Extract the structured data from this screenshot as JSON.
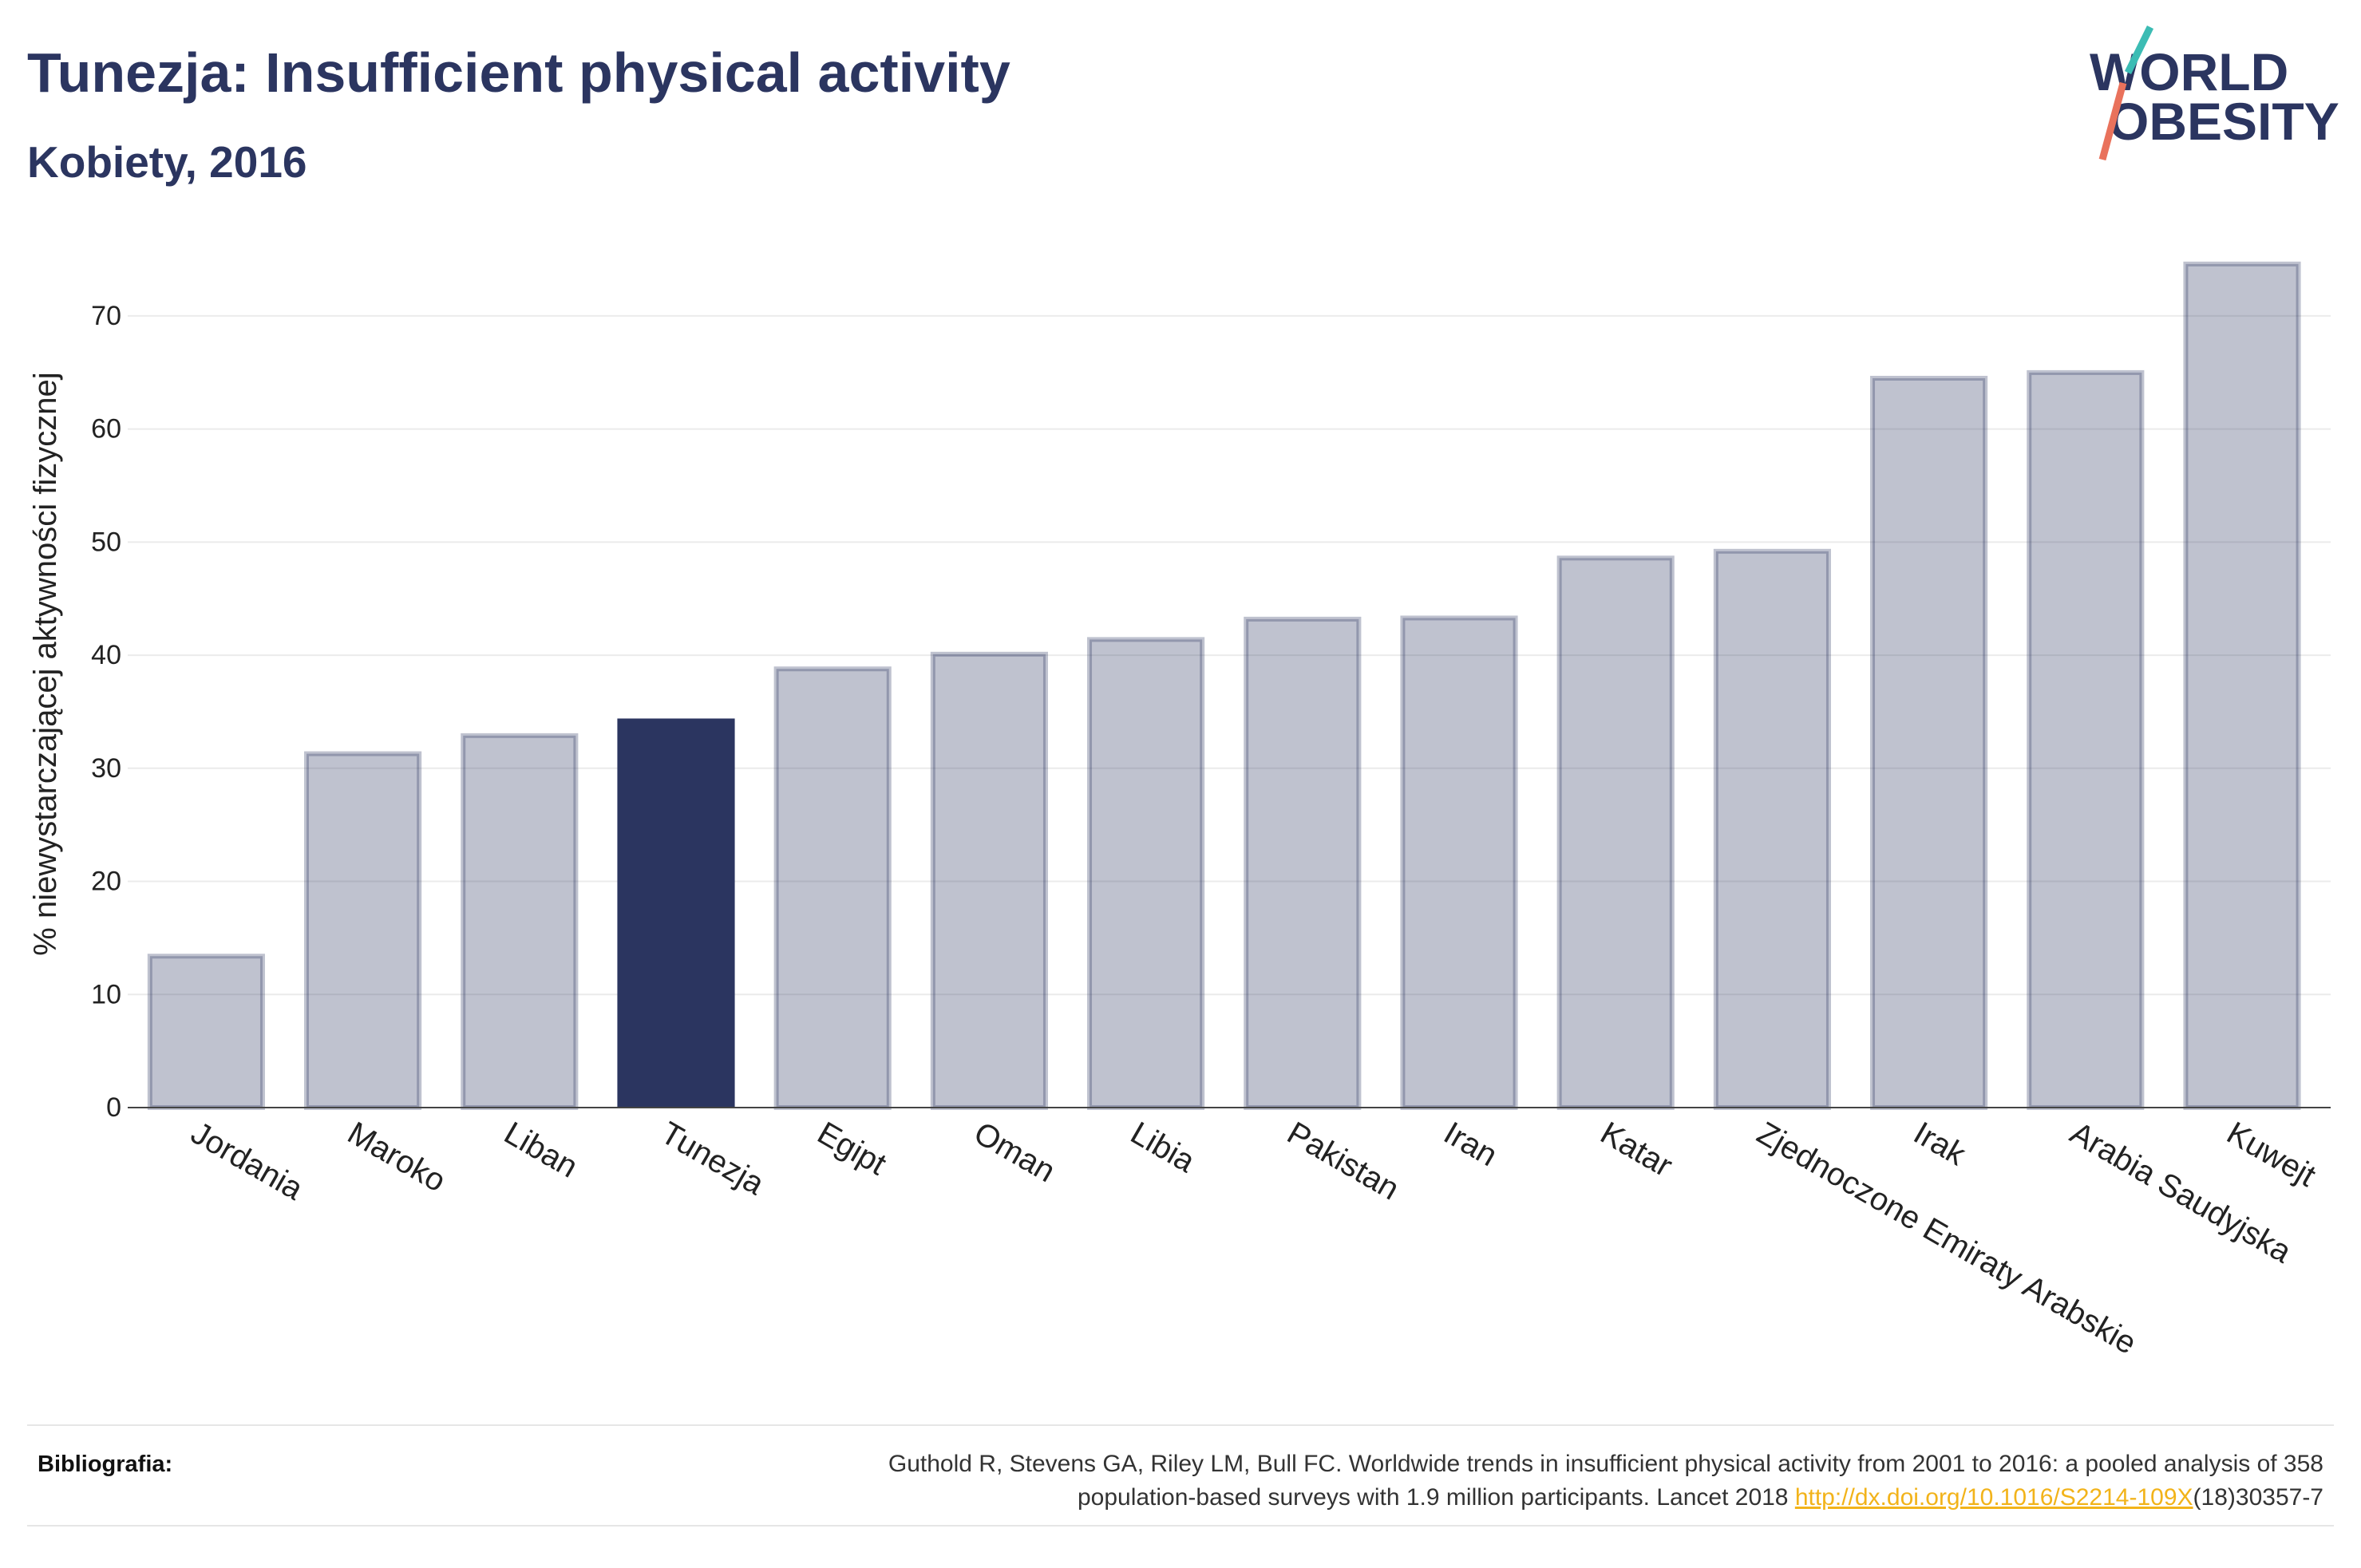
{
  "chart_data": {
    "type": "bar",
    "title": "Tunezja: Insufficient physical activity",
    "subtitle": "Kobiety, 2016",
    "xlabel": "",
    "ylabel": "% niewystarczającej aktywności fizycznej",
    "categories": [
      "Jordania",
      "Maroko",
      "Liban",
      "Tunezja",
      "Egipt",
      "Oman",
      "Libia",
      "Pakistan",
      "Iran",
      "Katar",
      "Zjednoczone Emiraty Arabskie",
      "Irak",
      "Arabia Saudyjska",
      "Kuwejt"
    ],
    "values": [
      13.6,
      31.5,
      33.1,
      34.4,
      39.0,
      40.3,
      41.6,
      43.4,
      43.5,
      48.8,
      49.4,
      64.7,
      65.2,
      74.8
    ],
    "highlight_index": 3,
    "ylim": [
      0,
      75
    ],
    "yticks": [
      0,
      10,
      20,
      30,
      40,
      50,
      60,
      70
    ],
    "grid": true
  },
  "logo": {
    "line1": "WORLD",
    "line2": "OBESITY"
  },
  "footer": {
    "label": "Bibliografia:",
    "citation_line1": "Guthold R, Stevens GA, Riley LM, Bull FC. Worldwide trends in insufficient physical activity from 2001 to 2016: a pooled analysis of 358",
    "citation_line2": "population-based surveys with 1.9 million participants. Lancet 2018 ",
    "link": "http://dx.doi.org/10.1016/S2214-109X",
    "link_suffix": "(18)30357-7"
  },
  "colors": {
    "text_navy": "#2b3560",
    "bar_fill": "rgba(43,53,96,0.3)",
    "bar_stroke": "rgba(43,53,96,0.3)",
    "highlight": "#2b3560",
    "grid": "#ebebeb",
    "axis": "#444444",
    "link": "#f2b31a",
    "logo_slash_top": "#3cbcb4",
    "logo_slash_bottom": "#e9725c"
  }
}
